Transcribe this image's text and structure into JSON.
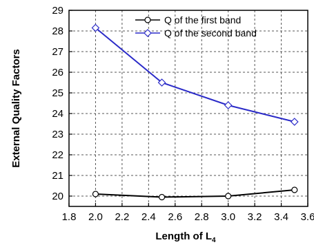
{
  "chart_data": {
    "type": "line",
    "x": [
      2.0,
      2.5,
      3.0,
      3.5
    ],
    "series": [
      {
        "name": "Q of the first band",
        "values": [
          20.1,
          19.95,
          20.0,
          20.3
        ],
        "color": "#000000",
        "marker": "circle"
      },
      {
        "name": "Q of the second band",
        "values": [
          28.15,
          25.5,
          24.4,
          23.6
        ],
        "color": "#2a2ac8",
        "marker": "diamond"
      }
    ],
    "xlabel_main": "Length of L",
    "xlabel_sub": "4",
    "ylabel": "External Quality Factors",
    "xlim": [
      1.8,
      3.6
    ],
    "ylim": [
      19.5,
      29
    ],
    "xticks": [
      "1.8",
      "2.0",
      "2.2",
      "2.4",
      "2.6",
      "2.8",
      "3.0",
      "3.2",
      "3.4",
      "3.6"
    ],
    "yticks": [
      "20",
      "21",
      "22",
      "23",
      "24",
      "25",
      "26",
      "27",
      "28",
      "29"
    ],
    "grid": true,
    "legend_position": "top-right"
  }
}
